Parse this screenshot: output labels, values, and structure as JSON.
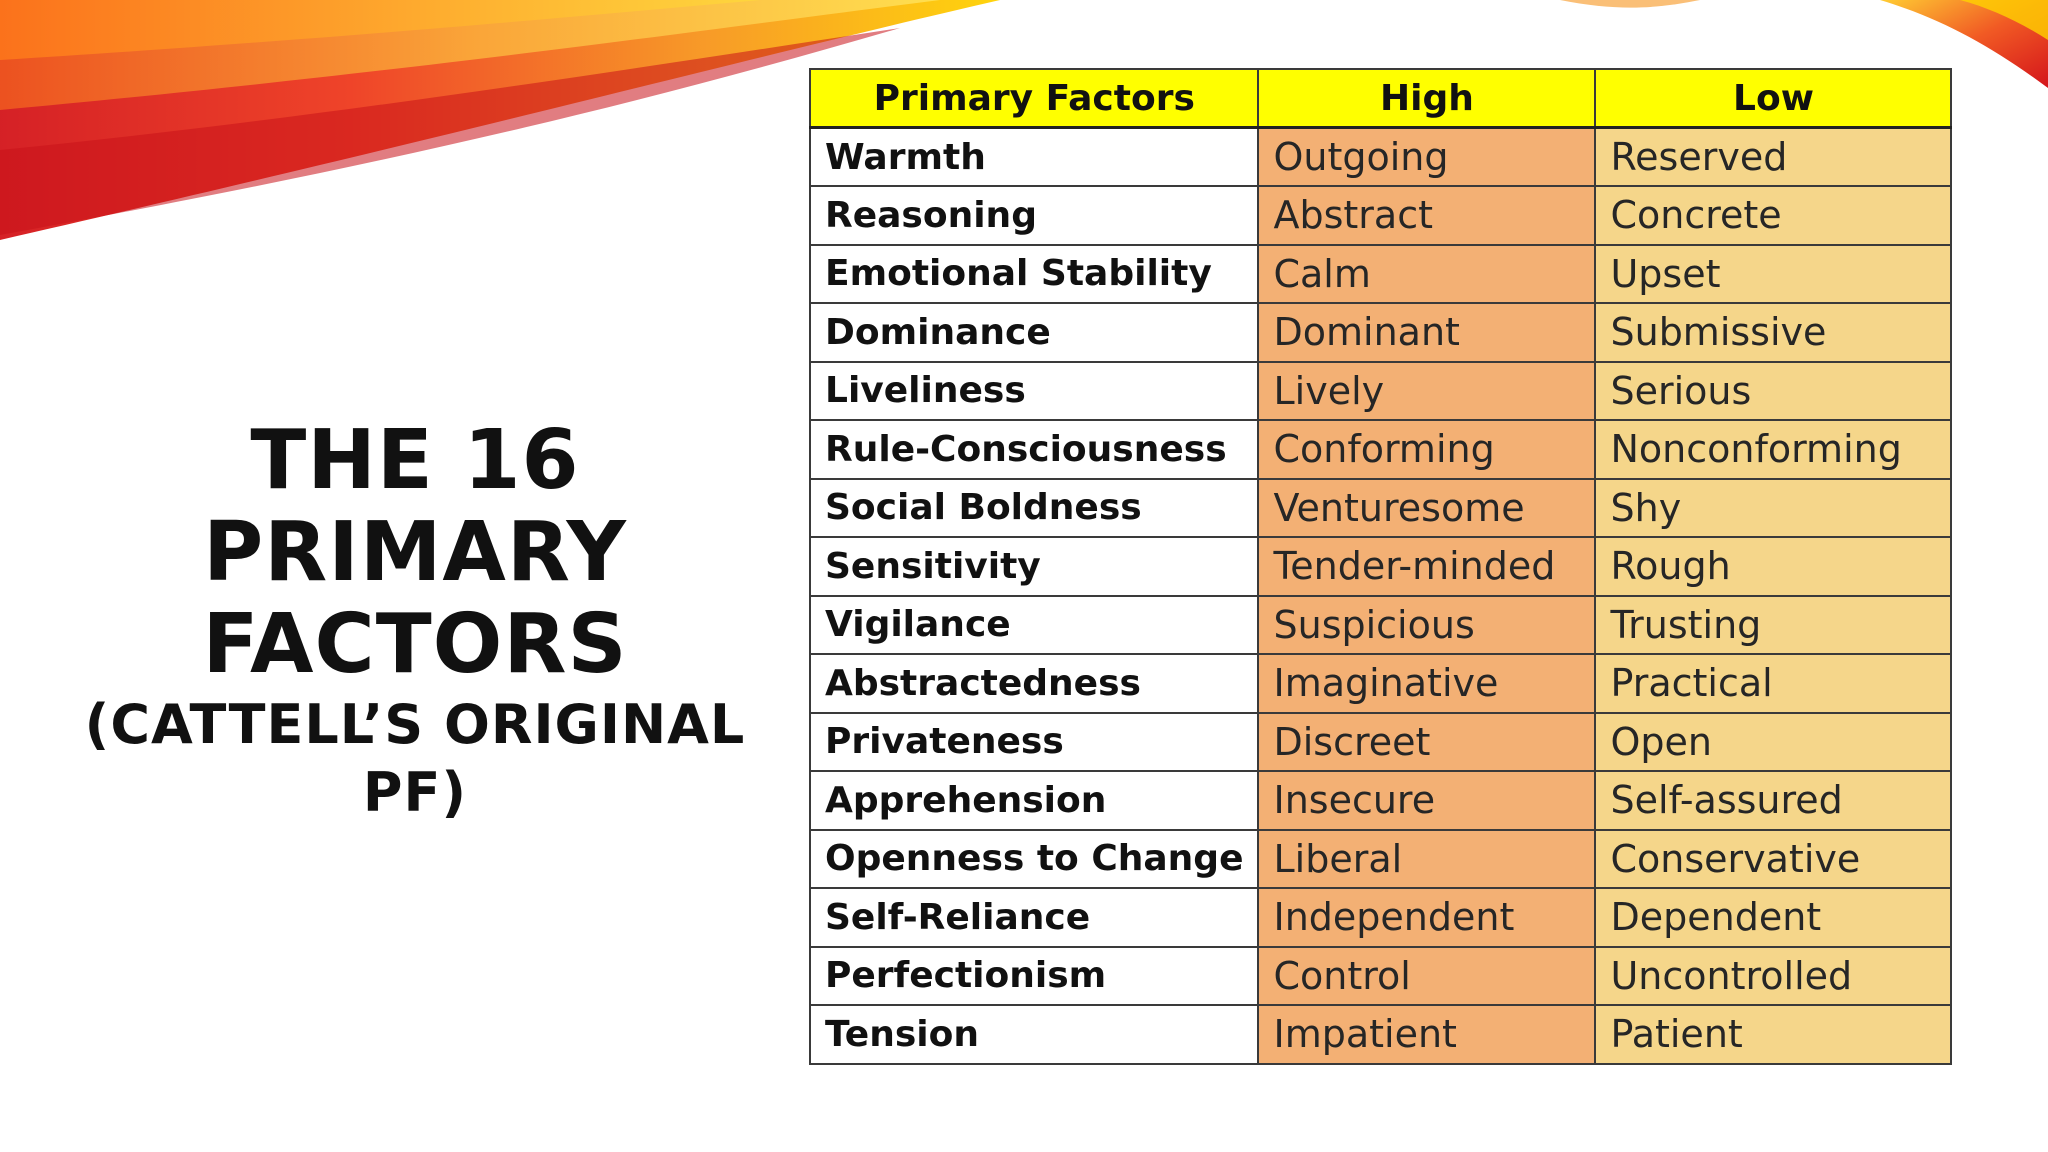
{
  "title": {
    "line1": "THE 16 PRIMARY",
    "line2": "FACTORS",
    "subtitle": "(CATTELL’S ORIGINAL PF)"
  },
  "colors": {
    "header_bg": "#ffff00",
    "high_bg": "#f3b074",
    "low_bg": "#f5d68a",
    "swoosh_red": "#e8201a",
    "swoosh_orange": "#f7941d",
    "swoosh_yellow": "#ffd200"
  },
  "table": {
    "headers": [
      "Primary Factors",
      "High",
      "Low"
    ],
    "rows": [
      {
        "factor": "Warmth",
        "high": "Outgoing",
        "low": "Reserved"
      },
      {
        "factor": "Reasoning",
        "high": "Abstract",
        "low": "Concrete"
      },
      {
        "factor": "Emotional Stability",
        "high": "Calm",
        "low": "Upset"
      },
      {
        "factor": "Dominance",
        "high": "Dominant",
        "low": "Submissive"
      },
      {
        "factor": "Liveliness",
        "high": "Lively",
        "low": "Serious"
      },
      {
        "factor": "Rule-Consciousness",
        "high": "Conforming",
        "low": "Nonconforming"
      },
      {
        "factor": "Social Boldness",
        "high": "Venturesome",
        "low": "Shy"
      },
      {
        "factor": "Sensitivity",
        "high": "Tender-minded",
        "low": "Rough"
      },
      {
        "factor": "Vigilance",
        "high": "Suspicious",
        "low": "Trusting"
      },
      {
        "factor": "Abstractedness",
        "high": "Imaginative",
        "low": "Practical"
      },
      {
        "factor": "Privateness",
        "high": "Discreet",
        "low": "Open"
      },
      {
        "factor": "Apprehension",
        "high": "Insecure",
        "low": "Self-assured"
      },
      {
        "factor": "Openness to Change",
        "high": "Liberal",
        "low": "Conservative"
      },
      {
        "factor": "Self-Reliance",
        "high": "Independent",
        "low": "Dependent"
      },
      {
        "factor": "Perfectionism",
        "high": "Control",
        "low": "Uncontrolled"
      },
      {
        "factor": "Tension",
        "high": "Impatient",
        "low": "Patient"
      }
    ]
  }
}
